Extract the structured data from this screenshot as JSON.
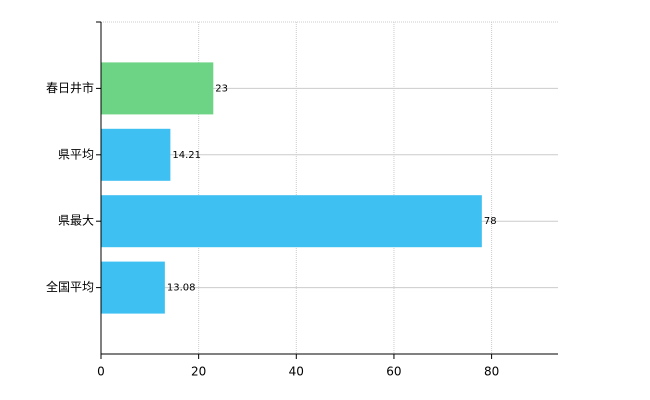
{
  "chart_data": {
    "type": "bar",
    "orientation": "horizontal",
    "categories": [
      "春日井市",
      "県平均",
      "県最大",
      "全国平均"
    ],
    "values": [
      23,
      14.21,
      78,
      13.08
    ],
    "colors": [
      "#6dd385",
      "#3ec0f2",
      "#3ec0f2",
      "#3ec0f2"
    ],
    "xlim": [
      0,
      93.6
    ],
    "xticks": [
      0,
      20,
      40,
      60,
      80
    ],
    "grid": true
  }
}
